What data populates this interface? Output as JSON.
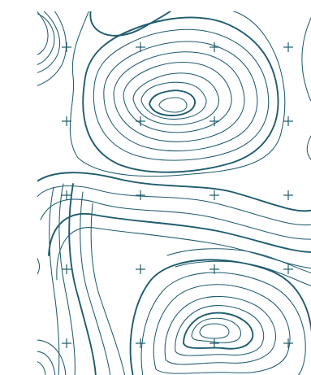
{
  "map": {
    "style": "topographic contour pattern",
    "colors": {
      "background": "#ffffff",
      "contour": "#1f5c6e",
      "grid_cross": "#1f5c6e"
    },
    "grid_marker_icon": "plus-cross-icon",
    "grid": {
      "columns": 4,
      "rows": 5
    }
  }
}
